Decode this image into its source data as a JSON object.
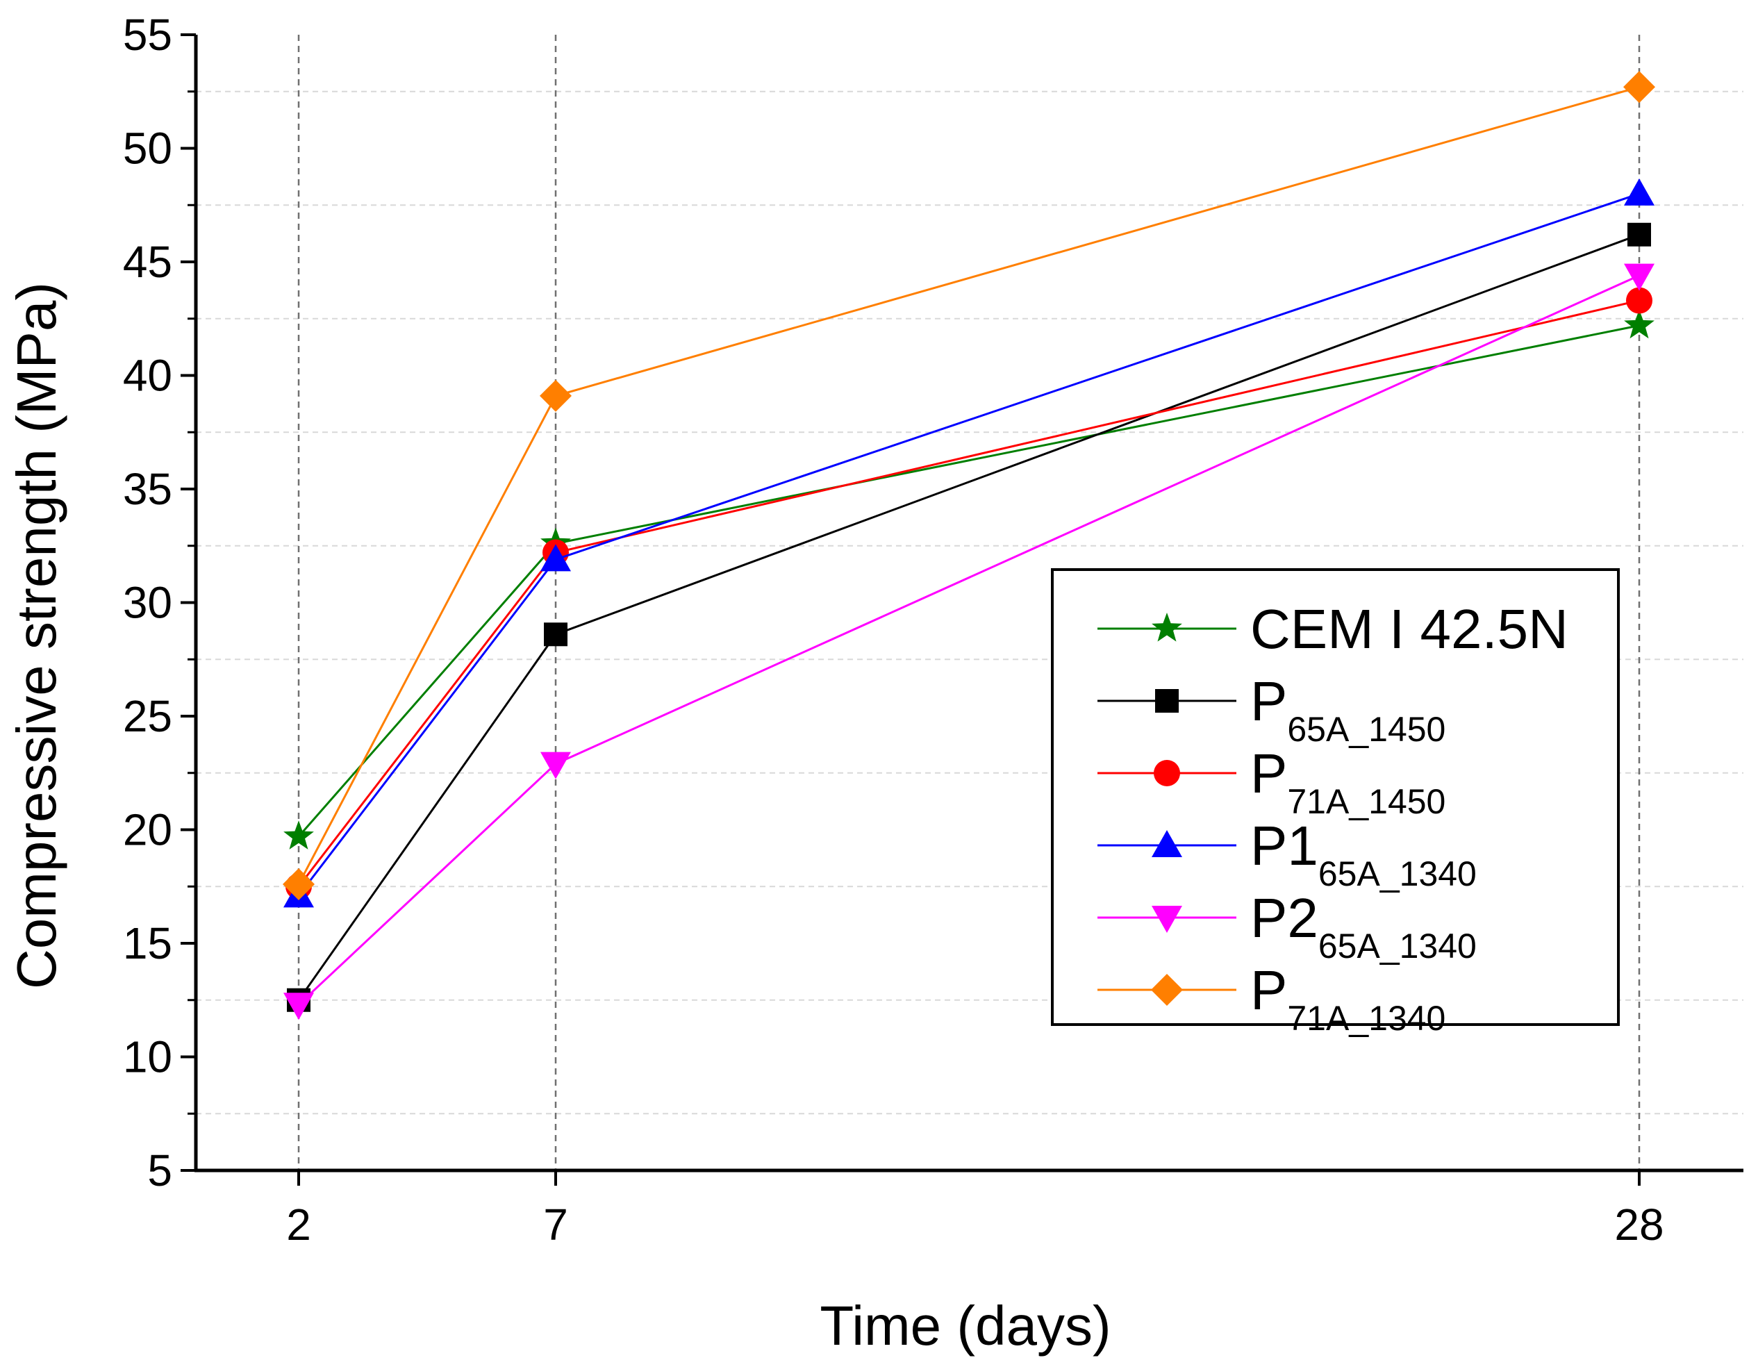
{
  "chart_data": {
    "type": "line",
    "title": "",
    "xlabel": "Time (days)",
    "ylabel": "Compressive strength (MPa)",
    "x": [
      2,
      7,
      28
    ],
    "x_ticks": [
      "2",
      "7",
      "28"
    ],
    "ylim": [
      5,
      55
    ],
    "y_ticks": [
      "5",
      "10",
      "15",
      "20",
      "25",
      "30",
      "35",
      "40",
      "45",
      "50",
      "55"
    ],
    "legend_position": "bottom-right",
    "series": [
      {
        "name": "CEM I 42.5N",
        "base": "CEM I 42.5N",
        "sub": "",
        "color": "#007f00",
        "marker": "star",
        "values": [
          19.7,
          32.6,
          42.2
        ]
      },
      {
        "name": "P65A_1450",
        "base": "P",
        "sub": "65A_1450",
        "color": "#000000",
        "marker": "square",
        "values": [
          12.5,
          28.6,
          46.2
        ]
      },
      {
        "name": "P71A_1450",
        "base": "P",
        "sub": "71A_1450",
        "color": "#ff0000",
        "marker": "circle",
        "values": [
          17.5,
          32.2,
          43.3
        ]
      },
      {
        "name": "P165A_1340",
        "base": "P1",
        "sub": "65A_1340",
        "color": "#0000ff",
        "marker": "triangle-up",
        "values": [
          17.1,
          31.9,
          48.0
        ]
      },
      {
        "name": "P265A_1340",
        "base": "P2",
        "sub": "65A_1340",
        "color": "#ff00ff",
        "marker": "triangle-down",
        "values": [
          12.3,
          22.9,
          44.4
        ]
      },
      {
        "name": "P71A_1340",
        "base": "P",
        "sub": "71A_1340",
        "color": "#ff7f00",
        "marker": "diamond",
        "values": [
          17.6,
          39.1,
          52.7
        ]
      }
    ]
  }
}
